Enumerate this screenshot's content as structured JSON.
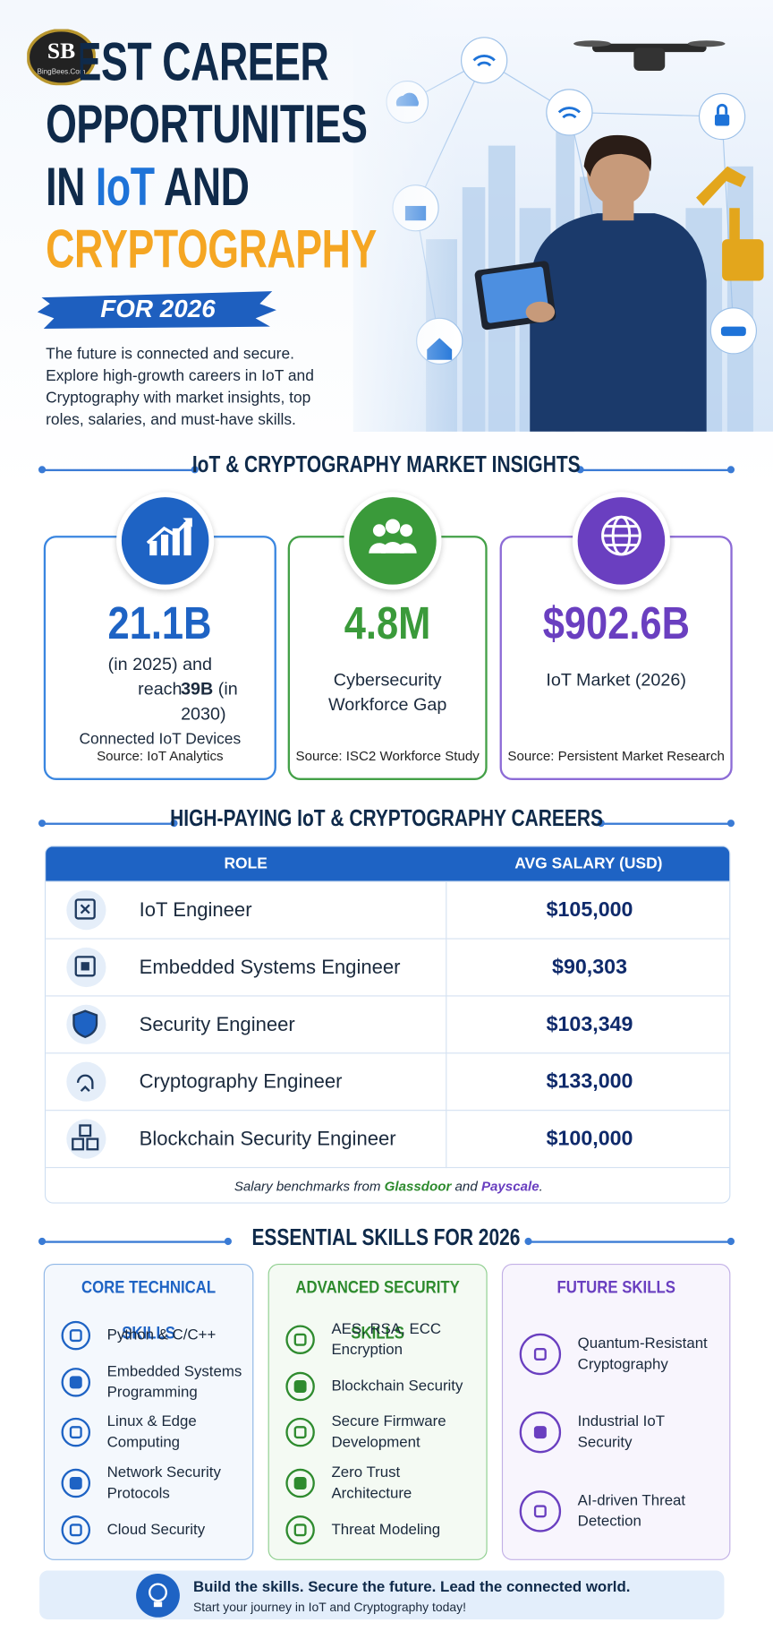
{
  "header": {
    "logo": "BingBees.Com",
    "title_line_1": "BEST CAREER",
    "title_line_2": "OPPORTUNITIES",
    "title_in": "IN",
    "title_iot": "IoT",
    "title_and": "AND",
    "title_line_4": "CRYPTOGRAPHY",
    "badge": "FOR 2026",
    "intro": "The future is connected and secure. Explore high-growth careers in IoT and Cryptography with market insights, top roles, salaries, and must-have skills."
  },
  "market": {
    "heading": "IoT & CRYPTOGRAPHY MARKET INSIGHTS",
    "cards": [
      {
        "value": "21.1B",
        "desc_pre": "(in 2025) and reach",
        "desc_bold": "39B",
        "desc_post": "(in 2030)",
        "label": "Connected IoT Devices",
        "source": "Source: IoT Analytics"
      },
      {
        "value": "4.8M",
        "label": "Cybersecurity Workforce Gap",
        "source": "Source: ISC2 Workforce Study"
      },
      {
        "value": "$902.6B",
        "label": "IoT Market (2026)",
        "source": "Source: Persistent Market Research"
      }
    ]
  },
  "careers": {
    "heading": "HIGH-PAYING IoT & CRYPTOGRAPHY CAREERS",
    "columns": [
      "ROLE",
      "AVG SALARY (USD)"
    ],
    "rows": [
      [
        "IoT Engineer",
        "$105,000"
      ],
      [
        "Embedded Systems Engineer",
        "$90,303"
      ],
      [
        "Security Engineer",
        "$103,349"
      ],
      [
        "Cryptography Engineer",
        "$133,000"
      ],
      [
        "Blockchain Security Engineer",
        "$100,000"
      ]
    ],
    "note": [
      "Salary benchmarks from",
      "Glassdoor",
      "and",
      "Payscale",
      "."
    ]
  },
  "skills": {
    "heading": "ESSENTIAL SKILLS FOR 2026",
    "columns": [
      {
        "title": "CORE TECHNICAL SKILLS",
        "items": [
          "Python & C/C++",
          "Embedded Systems Programming",
          "Linux & Edge Computing",
          "Network Security Protocols",
          "Cloud Security"
        ]
      },
      {
        "title": "ADVANCED SECURITY SKILLS",
        "items": [
          "AES, RSA, ECC Encryption",
          "Blockchain Security",
          "Secure Firmware Development",
          "Zero Trust Architecture",
          "Threat Modeling"
        ]
      },
      {
        "title": "FUTURE SKILLS",
        "items": [
          "Quantum-Resistant Cryptography",
          "Industrial IoT Security",
          "AI-driven Threat Detection"
        ]
      }
    ]
  },
  "footer": {
    "title": "Build the skills. Secure the future. Lead the connected world.",
    "subtitle": "Start your journey in IoT and Cryptography today!"
  }
}
